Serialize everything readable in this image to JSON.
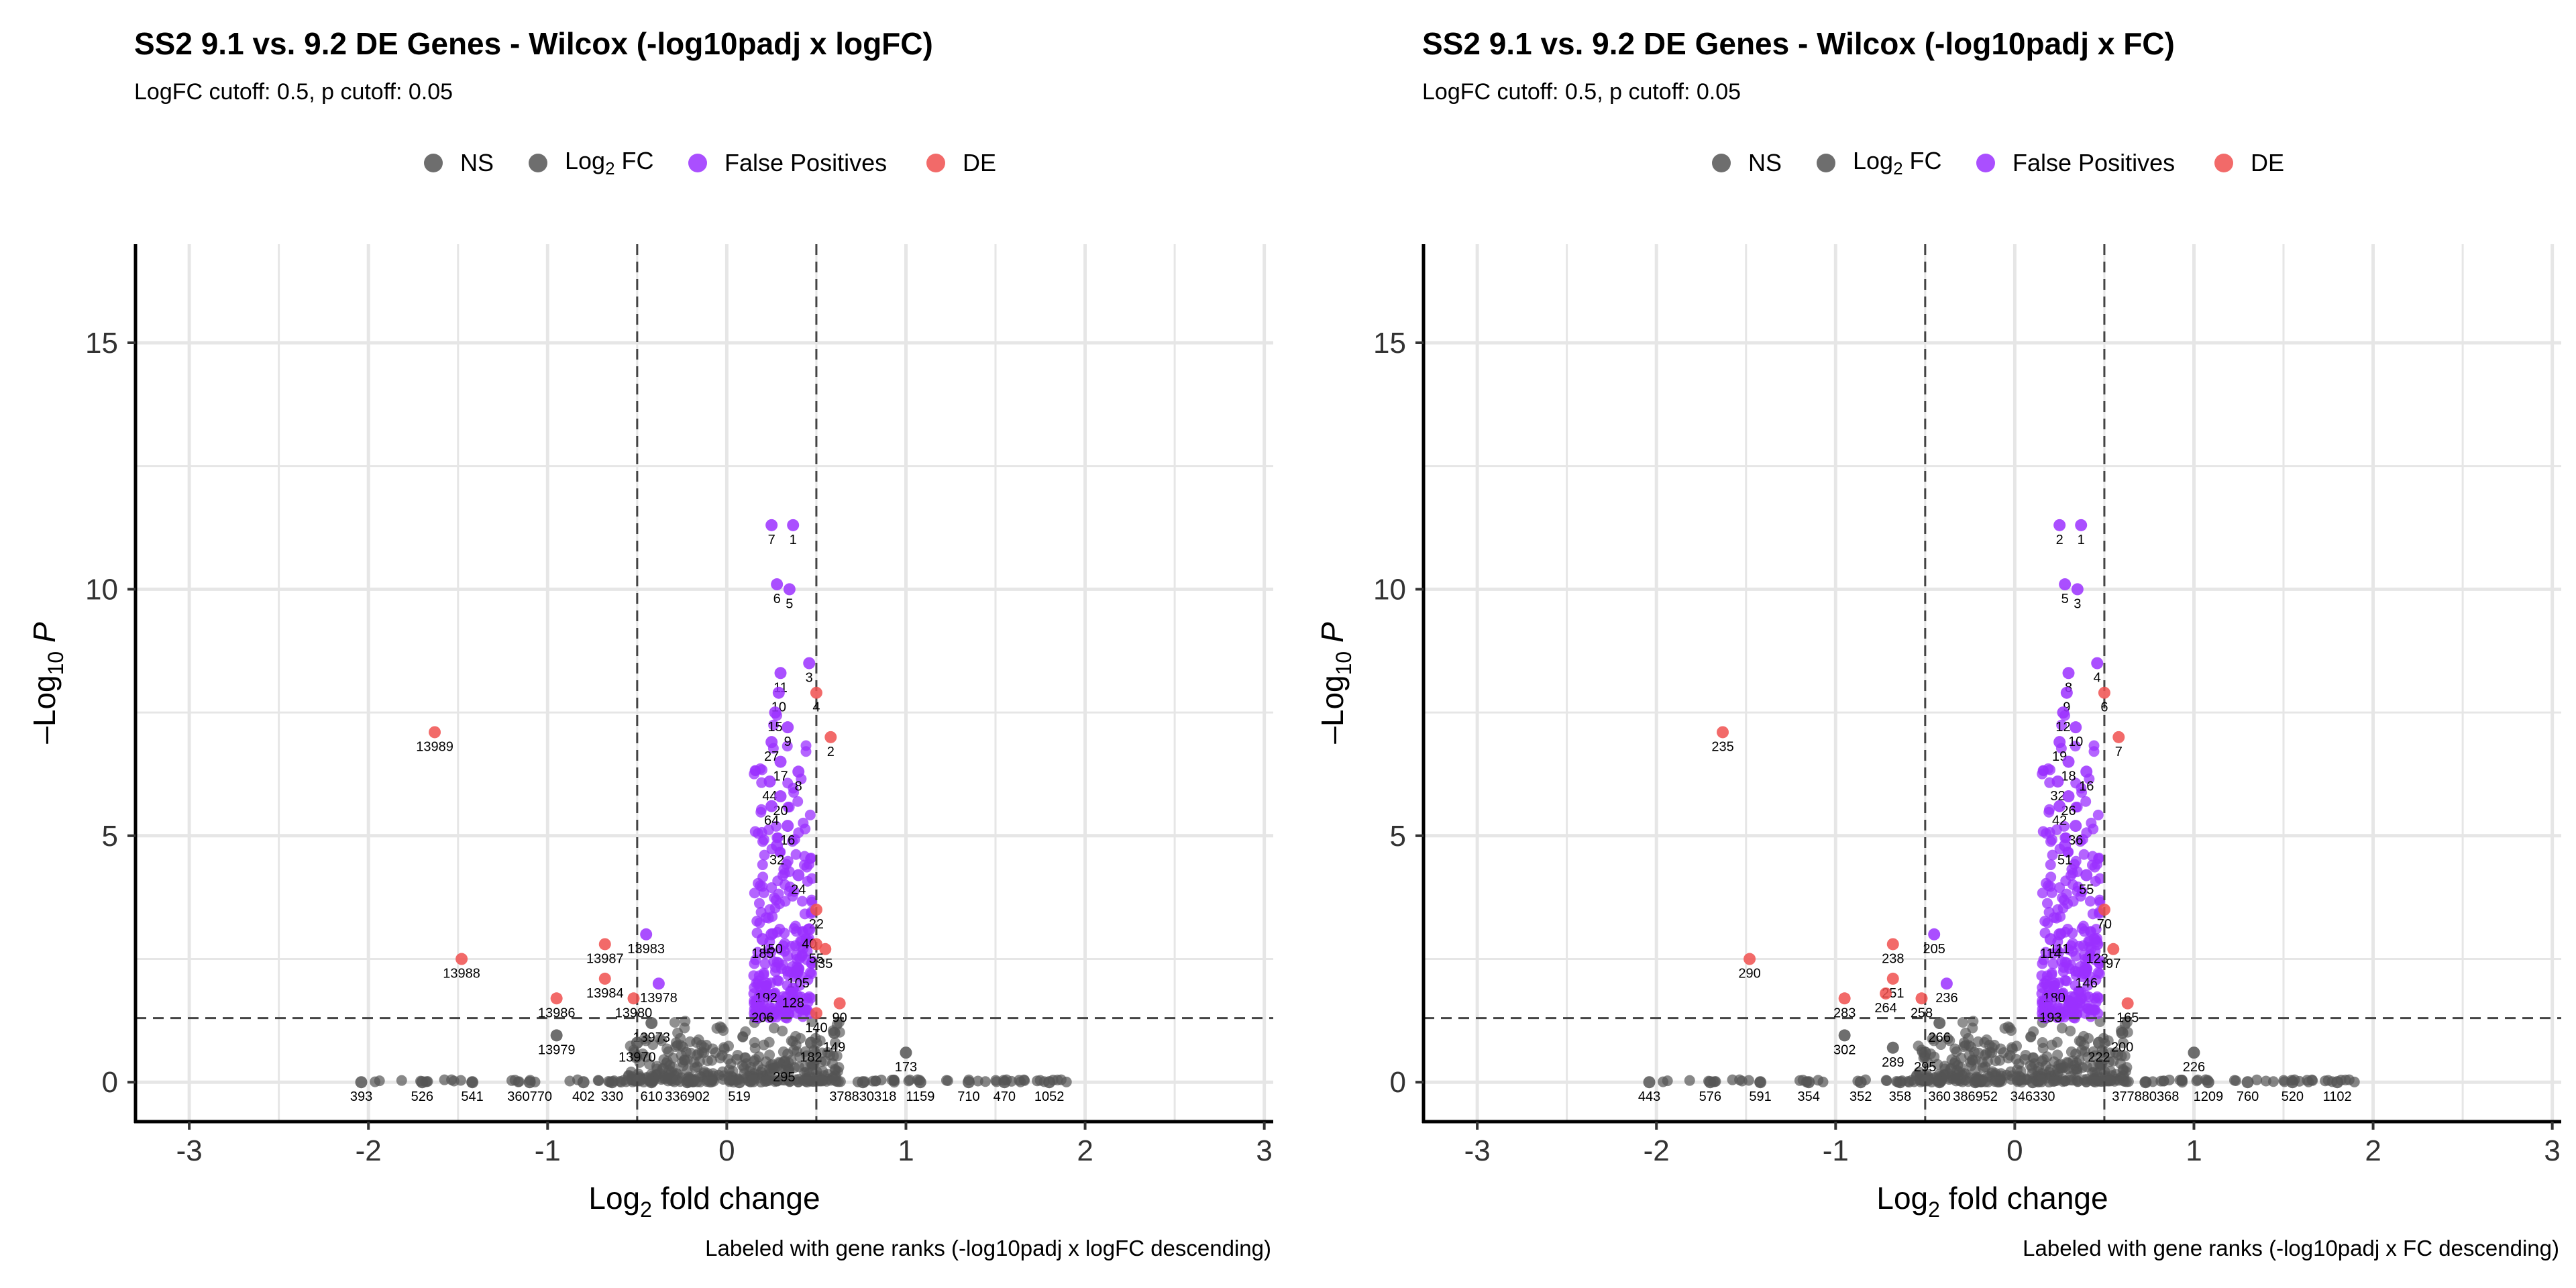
{
  "colors": {
    "NS": "#555555",
    "Log2FC": "#555555",
    "FalsePositives": "#9b30ff",
    "DE": "#f0504f"
  },
  "legend": {
    "ns": "NS",
    "log2fc_base": "Log",
    "log2fc_sub": "2",
    "log2fc_tail": " FC",
    "false_positives": "False Positives",
    "de": "DE"
  },
  "chart_data": [
    {
      "type": "scatter",
      "title": "SS2 9.1 vs. 9.2 DE Genes - Wilcox (-log10padj x logFC)",
      "subtitle": "LogFC cutoff: 0.5, p cutoff: 0.05",
      "caption": "Labeled with gene ranks (-log10padj x logFC descending)",
      "xlabel": "Log2 fold change",
      "ylabel": "-Log10 P",
      "xlim": [
        -3.3,
        3.05
      ],
      "ylim": [
        -0.8,
        17
      ],
      "xticks": [
        "-3",
        "-2",
        "-1",
        "0",
        "1",
        "2",
        "3"
      ],
      "yticks": [
        "0",
        "5",
        "10",
        "15"
      ],
      "cutoffs": {
        "logFC": 0.5,
        "p": 0.05,
        "neglog10p": 1.3
      },
      "grid": true,
      "legend_position": "top",
      "points": [
        {
          "x": 0.25,
          "y": 11.3,
          "class": "FalsePositives",
          "label": "7"
        },
        {
          "x": 0.37,
          "y": 11.3,
          "class": "FalsePositives",
          "label": "1"
        },
        {
          "x": 0.28,
          "y": 10.1,
          "class": "FalsePositives",
          "label": "6"
        },
        {
          "x": 0.35,
          "y": 10.0,
          "class": "FalsePositives",
          "label": "5"
        },
        {
          "x": 0.46,
          "y": 8.5,
          "class": "FalsePositives",
          "label": "3"
        },
        {
          "x": 0.3,
          "y": 8.3,
          "class": "FalsePositives",
          "label": "11"
        },
        {
          "x": 0.5,
          "y": 7.9,
          "class": "DE",
          "label": "4"
        },
        {
          "x": 0.58,
          "y": 7.0,
          "class": "DE",
          "label": "2"
        },
        {
          "x": 0.29,
          "y": 7.9,
          "class": "FalsePositives",
          "label": "10"
        },
        {
          "x": 0.27,
          "y": 7.5,
          "class": "FalsePositives",
          "label": "15"
        },
        {
          "x": 0.34,
          "y": 7.2,
          "class": "FalsePositives",
          "label": "9"
        },
        {
          "x": 0.25,
          "y": 6.9,
          "class": "FalsePositives",
          "label": "27"
        },
        {
          "x": 0.3,
          "y": 6.5,
          "class": "FalsePositives",
          "label": "17"
        },
        {
          "x": 0.24,
          "y": 6.1,
          "class": "FalsePositives",
          "label": "44"
        },
        {
          "x": 0.4,
          "y": 6.3,
          "class": "FalsePositives",
          "label": "8"
        },
        {
          "x": 0.3,
          "y": 5.8,
          "class": "FalsePositives",
          "label": "20"
        },
        {
          "x": 0.25,
          "y": 5.6,
          "class": "FalsePositives",
          "label": "64"
        },
        {
          "x": 0.34,
          "y": 5.2,
          "class": "FalsePositives",
          "label": "16"
        },
        {
          "x": 0.28,
          "y": 4.8,
          "class": "FalsePositives",
          "label": "32"
        },
        {
          "x": 0.4,
          "y": 4.2,
          "class": "FalsePositives",
          "label": "24"
        },
        {
          "x": 0.5,
          "y": 3.5,
          "class": "DE",
          "label": "22"
        },
        {
          "x": 0.46,
          "y": 3.1,
          "class": "FalsePositives",
          "label": "40"
        },
        {
          "x": 0.55,
          "y": 2.7,
          "class": "DE",
          "label": "35"
        },
        {
          "x": 0.5,
          "y": 2.8,
          "class": "DE",
          "label": "55"
        },
        {
          "x": 0.4,
          "y": 2.3,
          "class": "FalsePositives",
          "label": "105"
        },
        {
          "x": 0.37,
          "y": 1.9,
          "class": "FalsePositives",
          "label": "128"
        },
        {
          "x": 0.63,
          "y": 1.6,
          "class": "DE",
          "label": "90"
        },
        {
          "x": 0.5,
          "y": 1.4,
          "class": "DE",
          "label": "140"
        },
        {
          "x": 0.6,
          "y": 1.0,
          "class": "NS",
          "label": "149"
        },
        {
          "x": 0.47,
          "y": 0.8,
          "class": "NS",
          "label": "182"
        },
        {
          "x": 0.25,
          "y": 3.0,
          "class": "FalsePositives",
          "label": "150"
        },
        {
          "x": 0.2,
          "y": 2.9,
          "class": "FalsePositives",
          "label": "185"
        },
        {
          "x": 0.22,
          "y": 2.0,
          "class": "FalsePositives",
          "label": "192"
        },
        {
          "x": 0.2,
          "y": 1.6,
          "class": "FalsePositives",
          "label": "206"
        },
        {
          "x": 0.32,
          "y": 0.4,
          "class": "NS",
          "label": "295"
        },
        {
          "x": 1.0,
          "y": 0.6,
          "class": "NS",
          "label": "173"
        },
        {
          "x": -1.63,
          "y": 7.1,
          "class": "DE",
          "label": "13989"
        },
        {
          "x": -1.48,
          "y": 2.5,
          "class": "DE",
          "label": "13988"
        },
        {
          "x": -0.68,
          "y": 2.8,
          "class": "DE",
          "label": "13987"
        },
        {
          "x": -0.45,
          "y": 3.0,
          "class": "FalsePositives",
          "label": "13983"
        },
        {
          "x": -0.68,
          "y": 2.1,
          "class": "DE",
          "label": "13984"
        },
        {
          "x": -0.38,
          "y": 2.0,
          "class": "FalsePositives",
          "label": "13978"
        },
        {
          "x": -0.95,
          "y": 1.7,
          "class": "DE",
          "label": "13986"
        },
        {
          "x": -0.52,
          "y": 1.7,
          "class": "DE",
          "label": "13980"
        },
        {
          "x": -0.42,
          "y": 1.2,
          "class": "NS",
          "label": "13973"
        },
        {
          "x": -0.95,
          "y": 0.95,
          "class": "NS",
          "label": "13979"
        },
        {
          "x": -0.5,
          "y": 0.8,
          "class": "NS",
          "label": "13970"
        },
        {
          "x": -2.04,
          "y": 0.0,
          "class": "NS",
          "label": "393"
        },
        {
          "x": -1.7,
          "y": 0.0,
          "class": "NS",
          "label": "526"
        },
        {
          "x": -1.42,
          "y": 0.0,
          "class": "NS",
          "label": "541"
        },
        {
          "x": -1.1,
          "y": 0.0,
          "class": "NS",
          "label": "360770"
        },
        {
          "x": -0.8,
          "y": 0.0,
          "class": "NS",
          "label": "402"
        },
        {
          "x": -0.64,
          "y": 0.0,
          "class": "NS",
          "label": "330"
        },
        {
          "x": -0.42,
          "y": 0.0,
          "class": "NS",
          "label": "610"
        },
        {
          "x": -0.22,
          "y": 0.0,
          "class": "NS",
          "label": "336902"
        },
        {
          "x": 0.07,
          "y": 0.0,
          "class": "NS",
          "label": "519"
        },
        {
          "x": 0.76,
          "y": 0.0,
          "class": "NS",
          "label": "378830318"
        },
        {
          "x": 1.08,
          "y": 0.0,
          "class": "NS",
          "label": "1159"
        },
        {
          "x": 1.35,
          "y": 0.0,
          "class": "NS",
          "label": "710"
        },
        {
          "x": 1.55,
          "y": 0.0,
          "class": "NS",
          "label": "470"
        },
        {
          "x": 1.8,
          "y": 0.0,
          "class": "NS",
          "label": "1052"
        }
      ]
    },
    {
      "type": "scatter",
      "title": "SS2 9.1 vs. 9.2 DE Genes - Wilcox (-log10padj x FC)",
      "subtitle": "LogFC cutoff: 0.5, p cutoff: 0.05",
      "caption": "Labeled with gene ranks (-log10padj x FC descending)",
      "xlabel": "Log2 fold change",
      "ylabel": "-Log10 P",
      "xlim": [
        -3.3,
        3.05
      ],
      "ylim": [
        -0.8,
        17
      ],
      "xticks": [
        "-3",
        "-2",
        "-1",
        "0",
        "1",
        "2",
        "3"
      ],
      "yticks": [
        "0",
        "5",
        "10",
        "15"
      ],
      "cutoffs": {
        "logFC": 0.5,
        "p": 0.05,
        "neglog10p": 1.3
      },
      "grid": true,
      "legend_position": "top",
      "points": [
        {
          "x": 0.25,
          "y": 11.3,
          "class": "FalsePositives",
          "label": "2"
        },
        {
          "x": 0.37,
          "y": 11.3,
          "class": "FalsePositives",
          "label": "1"
        },
        {
          "x": 0.28,
          "y": 10.1,
          "class": "FalsePositives",
          "label": "5"
        },
        {
          "x": 0.35,
          "y": 10.0,
          "class": "FalsePositives",
          "label": "3"
        },
        {
          "x": 0.46,
          "y": 8.5,
          "class": "FalsePositives",
          "label": "4"
        },
        {
          "x": 0.3,
          "y": 8.3,
          "class": "FalsePositives",
          "label": "8"
        },
        {
          "x": 0.5,
          "y": 7.9,
          "class": "DE",
          "label": "6"
        },
        {
          "x": 0.58,
          "y": 7.0,
          "class": "DE",
          "label": "7"
        },
        {
          "x": 0.29,
          "y": 7.9,
          "class": "FalsePositives",
          "label": "9"
        },
        {
          "x": 0.27,
          "y": 7.5,
          "class": "FalsePositives",
          "label": "12"
        },
        {
          "x": 0.34,
          "y": 7.2,
          "class": "FalsePositives",
          "label": "10"
        },
        {
          "x": 0.25,
          "y": 6.9,
          "class": "FalsePositives",
          "label": "19"
        },
        {
          "x": 0.3,
          "y": 6.5,
          "class": "FalsePositives",
          "label": "18"
        },
        {
          "x": 0.24,
          "y": 6.1,
          "class": "FalsePositives",
          "label": "32"
        },
        {
          "x": 0.4,
          "y": 6.3,
          "class": "FalsePositives",
          "label": "16"
        },
        {
          "x": 0.3,
          "y": 5.8,
          "class": "FalsePositives",
          "label": "26"
        },
        {
          "x": 0.25,
          "y": 5.6,
          "class": "FalsePositives",
          "label": "42"
        },
        {
          "x": 0.34,
          "y": 5.2,
          "class": "FalsePositives",
          "label": "36"
        },
        {
          "x": 0.28,
          "y": 4.8,
          "class": "FalsePositives",
          "label": "51"
        },
        {
          "x": 0.4,
          "y": 4.2,
          "class": "FalsePositives",
          "label": "55"
        },
        {
          "x": 0.5,
          "y": 3.5,
          "class": "DE",
          "label": "70"
        },
        {
          "x": 0.55,
          "y": 2.7,
          "class": "DE",
          "label": "97"
        },
        {
          "x": 0.46,
          "y": 2.8,
          "class": "FalsePositives",
          "label": "123"
        },
        {
          "x": 0.4,
          "y": 2.3,
          "class": "FalsePositives",
          "label": "146"
        },
        {
          "x": 0.63,
          "y": 1.6,
          "class": "DE",
          "label": "165"
        },
        {
          "x": 0.6,
          "y": 1.0,
          "class": "NS",
          "label": "200"
        },
        {
          "x": 0.47,
          "y": 0.8,
          "class": "NS",
          "label": "222"
        },
        {
          "x": 0.25,
          "y": 3.0,
          "class": "FalsePositives",
          "label": "111"
        },
        {
          "x": 0.2,
          "y": 2.9,
          "class": "FalsePositives",
          "label": "114"
        },
        {
          "x": 0.22,
          "y": 2.0,
          "class": "FalsePositives",
          "label": "180"
        },
        {
          "x": 0.2,
          "y": 1.6,
          "class": "FalsePositives",
          "label": "193"
        },
        {
          "x": 1.0,
          "y": 0.6,
          "class": "NS",
          "label": "226"
        },
        {
          "x": -1.63,
          "y": 7.1,
          "class": "DE",
          "label": "235"
        },
        {
          "x": -1.48,
          "y": 2.5,
          "class": "DE",
          "label": "290"
        },
        {
          "x": -0.68,
          "y": 2.8,
          "class": "DE",
          "label": "238"
        },
        {
          "x": -0.45,
          "y": 3.0,
          "class": "FalsePositives",
          "label": "205"
        },
        {
          "x": -0.68,
          "y": 2.1,
          "class": "DE",
          "label": "251"
        },
        {
          "x": -0.38,
          "y": 2.0,
          "class": "FalsePositives",
          "label": "236"
        },
        {
          "x": -0.95,
          "y": 1.7,
          "class": "DE",
          "label": "283"
        },
        {
          "x": -0.72,
          "y": 1.8,
          "class": "DE",
          "label": "264"
        },
        {
          "x": -0.52,
          "y": 1.7,
          "class": "DE",
          "label": "258"
        },
        {
          "x": -0.42,
          "y": 1.2,
          "class": "NS",
          "label": "266"
        },
        {
          "x": -0.95,
          "y": 0.95,
          "class": "NS",
          "label": "302"
        },
        {
          "x": -0.68,
          "y": 0.7,
          "class": "NS",
          "label": "289"
        },
        {
          "x": -0.5,
          "y": 0.6,
          "class": "NS",
          "label": "295"
        },
        {
          "x": -2.04,
          "y": 0.0,
          "class": "NS",
          "label": "443"
        },
        {
          "x": -1.7,
          "y": 0.0,
          "class": "NS",
          "label": "576"
        },
        {
          "x": -1.42,
          "y": 0.0,
          "class": "NS",
          "label": "591"
        },
        {
          "x": -1.15,
          "y": 0.0,
          "class": "NS",
          "label": "354"
        },
        {
          "x": -0.86,
          "y": 0.0,
          "class": "NS",
          "label": "352"
        },
        {
          "x": -0.64,
          "y": 0.0,
          "class": "NS",
          "label": "358"
        },
        {
          "x": -0.42,
          "y": 0.0,
          "class": "NS",
          "label": "360"
        },
        {
          "x": -0.22,
          "y": 0.0,
          "class": "NS",
          "label": "386952"
        },
        {
          "x": 0.1,
          "y": 0.0,
          "class": "NS",
          "label": "346330"
        },
        {
          "x": 0.73,
          "y": 0.0,
          "class": "NS",
          "label": "377880368"
        },
        {
          "x": 1.08,
          "y": 0.0,
          "class": "NS",
          "label": "1209"
        },
        {
          "x": 1.3,
          "y": 0.0,
          "class": "NS",
          "label": "760"
        },
        {
          "x": 1.55,
          "y": 0.0,
          "class": "NS",
          "label": "520"
        },
        {
          "x": 1.8,
          "y": 0.0,
          "class": "NS",
          "label": "1102"
        }
      ]
    }
  ]
}
